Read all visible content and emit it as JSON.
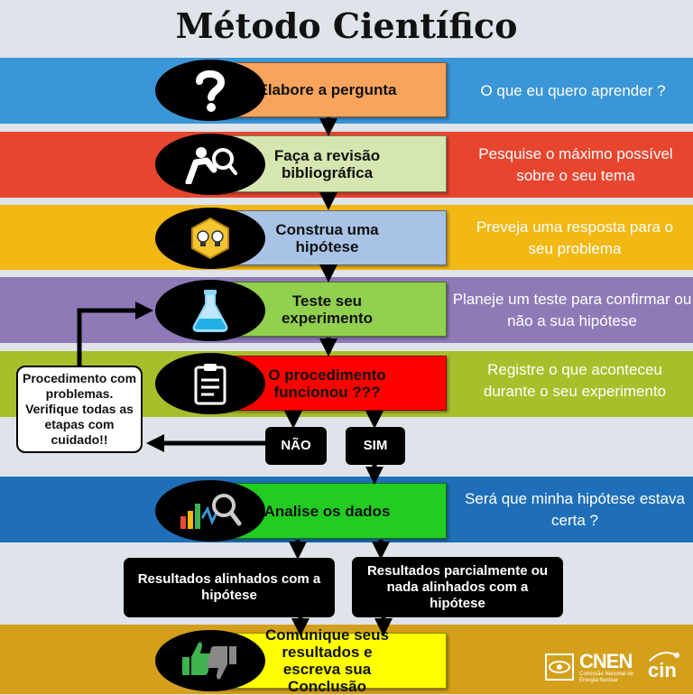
{
  "title": "Método Científico",
  "colors": {
    "background": "#dfe4ea",
    "band_blue": "#3a96d6",
    "band_red": "#e8452f",
    "band_yellow": "#f2b814",
    "band_purple": "#8f7ab8",
    "band_olive": "#a7bf2b",
    "band_darkblue": "#1f6fb8",
    "band_gold": "#d4a01b",
    "box_orange": "#f9a45c",
    "box_lightgreen": "#d6e6b0",
    "box_lightblue": "#a9c3e6",
    "box_green": "#92d050",
    "box_red": "#ff0000",
    "box_brightgreen": "#22cc22",
    "box_yellow": "#ffff00"
  },
  "steps": [
    {
      "label": "Elabore a pergunta",
      "icon": "question-mark-icon",
      "description": "O que eu quero aprender ?"
    },
    {
      "label": "Faça a revisão bibliográfica",
      "icon": "person-magnifier-icon",
      "description": "Pesquise o máximo possível sobre o seu tema"
    },
    {
      "label": "Construa uma hipótese",
      "icon": "lightbulbs-icon",
      "description": "Preveja uma resposta para o seu problema"
    },
    {
      "label": "Teste seu experimento",
      "icon": "flask-icon",
      "description": "Planeje um teste para confirmar ou não a sua hipótese"
    },
    {
      "label": "O procedimento funcionou ???",
      "icon": "clipboard-icon",
      "description": "Registre o que aconteceu durante o seu experimento"
    },
    {
      "label": "Analise os dados",
      "icon": "chart-magnifier-icon",
      "description": "Será que minha hipótese estava certa ?"
    },
    {
      "label": "Comunique seus resultados e escreva sua Conclusão",
      "icon": "thumbs-up-down-icon",
      "description": ""
    }
  ],
  "decision": {
    "no": "NÃO",
    "yes": "SIM"
  },
  "problem_note": "Procedimento com problemas. Verifique todas as etapas  com cuidado!!",
  "results": {
    "aligned": "Resultados alinhados com a hipótese",
    "partial": "Resultados parcialmente ou nada alinhados com a hipótese"
  },
  "logos": {
    "cnen": "CNEN",
    "cnen_sub": "Comissão Nacional de Energia Nuclear",
    "cin": "cin"
  }
}
